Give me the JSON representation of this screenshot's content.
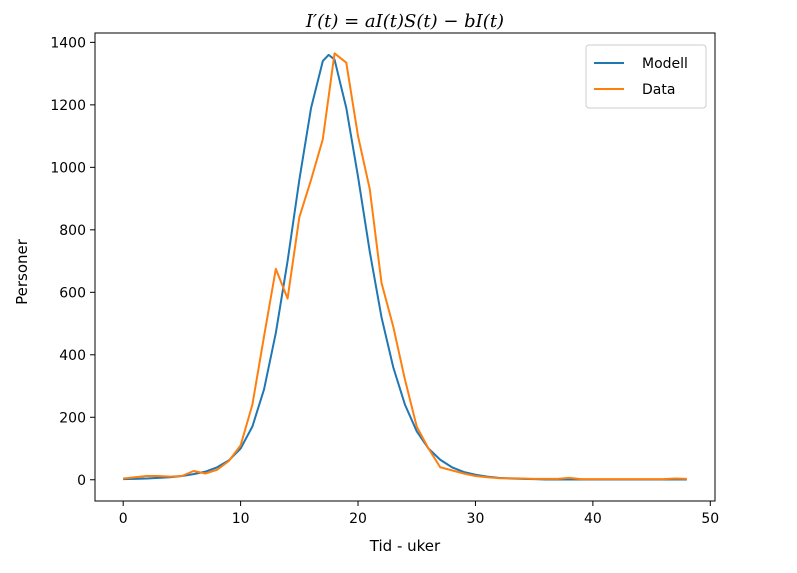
{
  "chart_data": {
    "type": "line",
    "title": "I′(t) = aI(t)S(t) − bI(t)",
    "xlabel": "Tid - uker",
    "ylabel": "Personer",
    "xlim": [
      -2.4,
      50.4
    ],
    "ylim": [
      -68,
      1430
    ],
    "xticks": [
      0,
      10,
      20,
      30,
      40,
      50
    ],
    "yticks": [
      0,
      200,
      400,
      600,
      800,
      1000,
      1200,
      1400
    ],
    "legend_position": "upper right",
    "grid": false,
    "series": [
      {
        "name": "Modell",
        "color": "#1f77b4",
        "x": [
          0,
          1,
          2,
          3,
          4,
          5,
          6,
          7,
          8,
          9,
          10,
          11,
          12,
          13,
          14,
          15,
          16,
          17,
          17.5,
          18,
          19,
          20,
          21,
          22,
          23,
          24,
          25,
          26,
          27,
          28,
          29,
          30,
          31,
          32,
          33,
          34,
          35,
          36,
          37,
          38,
          39,
          40,
          41,
          42,
          43,
          44,
          45,
          46,
          47,
          48
        ],
        "y": [
          2,
          3,
          4,
          6,
          8,
          12,
          18,
          26,
          40,
          62,
          100,
          170,
          290,
          470,
          700,
          960,
          1190,
          1340,
          1360,
          1345,
          1190,
          970,
          730,
          520,
          360,
          240,
          155,
          100,
          64,
          40,
          25,
          16,
          10,
          6,
          4,
          3,
          2,
          1,
          1,
          1,
          1,
          1,
          1,
          1,
          1,
          1,
          1,
          1,
          1,
          1
        ]
      },
      {
        "name": "Data",
        "color": "#ff7f0e",
        "x": [
          0,
          1,
          2,
          3,
          4,
          5,
          6,
          7,
          8,
          9,
          10,
          11,
          12,
          13,
          14,
          15,
          16,
          17,
          18,
          19,
          20,
          21,
          22,
          23,
          24,
          25,
          26,
          27,
          28,
          29,
          30,
          31,
          32,
          33,
          34,
          35,
          36,
          37,
          38,
          39,
          40,
          41,
          42,
          43,
          44,
          45,
          46,
          47,
          48
        ],
        "y": [
          4,
          8,
          12,
          12,
          10,
          12,
          28,
          20,
          32,
          60,
          110,
          240,
          460,
          675,
          580,
          840,
          960,
          1090,
          1365,
          1335,
          1100,
          930,
          630,
          490,
          320,
          170,
          100,
          40,
          30,
          20,
          12,
          8,
          5,
          5,
          4,
          3,
          3,
          3,
          6,
          2,
          2,
          2,
          2,
          2,
          2,
          2,
          2,
          4,
          3
        ]
      }
    ]
  }
}
